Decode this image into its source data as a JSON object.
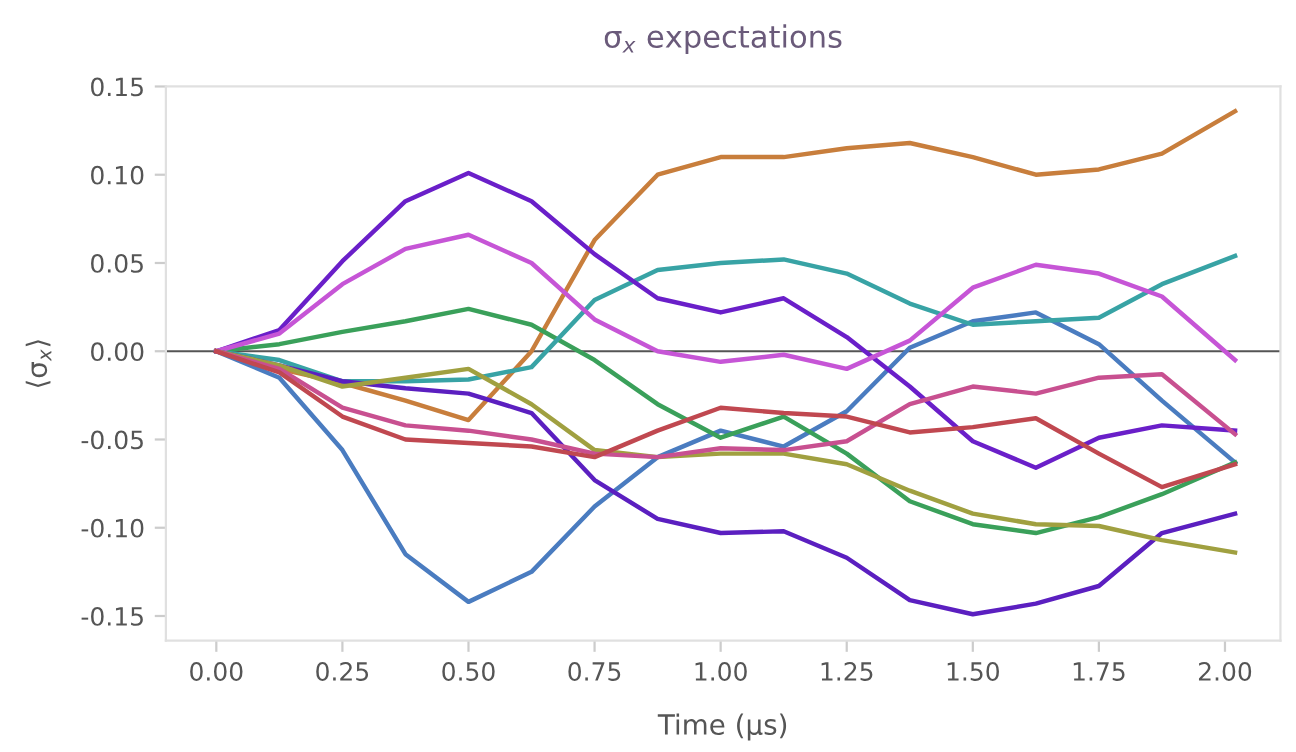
{
  "chart_data": {
    "type": "line",
    "title": "σ$_{x}$ expectations",
    "xlabel": "Time (µs)",
    "ylabel": "⟨σ$_{x}$⟩",
    "x": [
      0,
      0.125,
      0.25,
      0.375,
      0.5,
      0.625,
      0.75,
      0.875,
      1.0,
      1.125,
      1.25,
      1.375,
      1.5,
      1.625,
      1.75,
      1.875,
      2.02
    ],
    "series": [
      {
        "color": "#4a7cc0",
        "values": [
          0,
          -0.015,
          -0.056,
          -0.115,
          -0.142,
          -0.125,
          -0.088,
          -0.06,
          -0.045,
          -0.054,
          -0.034,
          0.002,
          0.017,
          0.022,
          0.004,
          -0.028,
          -0.063
        ]
      },
      {
        "color": "#c87e3c",
        "values": [
          0,
          -0.01,
          -0.018,
          -0.028,
          -0.039,
          0,
          0.063,
          0.1,
          0.11,
          0.11,
          0.115,
          0.118,
          0.11,
          0.1,
          0.103,
          0.112,
          0.136
        ]
      },
      {
        "color": "#3aa05a",
        "values": [
          0,
          0.004,
          0.011,
          0.017,
          0.024,
          0.015,
          -0.005,
          -0.03,
          -0.049,
          -0.037,
          -0.058,
          -0.085,
          -0.098,
          -0.103,
          -0.094,
          -0.081,
          -0.063
        ]
      },
      {
        "color": "#38a3a5",
        "values": [
          0,
          -0.005,
          -0.017,
          -0.017,
          -0.016,
          -0.009,
          0.029,
          0.046,
          0.05,
          0.052,
          0.044,
          0.027,
          0.015,
          0.017,
          0.019,
          0.038,
          0.054
        ]
      },
      {
        "color": "#6a1fc9",
        "values": [
          0,
          0.012,
          0.051,
          0.085,
          0.101,
          0.085,
          0.055,
          0.03,
          0.022,
          0.03,
          0.008,
          -0.02,
          -0.051,
          -0.066,
          -0.049,
          -0.042,
          -0.045
        ]
      },
      {
        "color": "#c655d6",
        "values": [
          0,
          0.01,
          0.038,
          0.058,
          0.066,
          0.05,
          0.018,
          0.0,
          -0.006,
          -0.002,
          -0.01,
          0.006,
          0.036,
          0.049,
          0.044,
          0.031,
          -0.005
        ]
      },
      {
        "color": "#5b1fc0",
        "values": [
          0,
          -0.008,
          -0.017,
          -0.021,
          -0.024,
          -0.035,
          -0.073,
          -0.095,
          -0.103,
          -0.102,
          -0.117,
          -0.141,
          -0.149,
          -0.143,
          -0.133,
          -0.103,
          -0.092
        ]
      },
      {
        "color": "#a0a040",
        "values": [
          0,
          -0.008,
          -0.02,
          -0.015,
          -0.01,
          -0.03,
          -0.056,
          -0.06,
          -0.058,
          -0.058,
          -0.064,
          -0.079,
          -0.092,
          -0.098,
          -0.099,
          -0.107,
          -0.114
        ]
      },
      {
        "color": "#c85090",
        "values": [
          0,
          -0.01,
          -0.032,
          -0.042,
          -0.045,
          -0.05,
          -0.058,
          -0.06,
          -0.055,
          -0.056,
          -0.051,
          -0.03,
          -0.02,
          -0.024,
          -0.015,
          -0.013,
          -0.047
        ]
      },
      {
        "color": "#c04850",
        "values": [
          0,
          -0.012,
          -0.037,
          -0.05,
          -0.052,
          -0.054,
          -0.06,
          -0.045,
          -0.032,
          -0.035,
          -0.037,
          -0.046,
          -0.043,
          -0.038,
          -0.058,
          -0.077,
          -0.064
        ]
      }
    ],
    "ref_lines": [
      {
        "axis": "y",
        "value": 0,
        "color": "#555555"
      }
    ],
    "xlim": [
      -0.1,
      2.11
    ],
    "ylim": [
      -0.164,
      0.15
    ],
    "xticks": [
      {
        "value": 0,
        "label": "0.00"
      },
      0.25,
      {
        "value": 0.5,
        "label": "0.50"
      },
      0.75,
      {
        "value": 1,
        "label": "1.00"
      },
      1.25,
      {
        "value": 1.5,
        "label": "1.50"
      },
      1.75,
      {
        "value": 2,
        "label": "2.00"
      }
    ],
    "yticks": [
      -0.15,
      {
        "value": -0.1,
        "label": "-0.10"
      },
      -0.05,
      {
        "value": 0,
        "label": "0.00"
      },
      0.05,
      {
        "value": 0.1,
        "label": "0.10"
      },
      0.15
    ],
    "grid": false,
    "legend": false
  }
}
